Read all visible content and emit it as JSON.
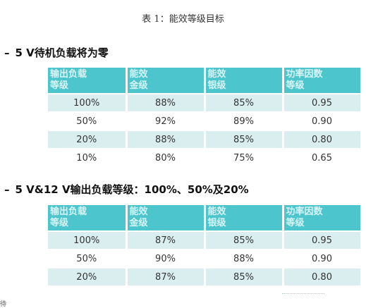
{
  "caption": "表 1：能效等级目标",
  "sections": [
    {
      "dash": "–",
      "title": "5 V待机负载将为零",
      "headers": [
        "输出负载\n等级",
        "能效\n金级",
        "能效\n银级",
        "功率因数\n等级"
      ],
      "rows": [
        [
          "100%",
          "88%",
          "85%",
          "0.95"
        ],
        [
          "50%",
          "92%",
          "89%",
          "0.90"
        ],
        [
          "20%",
          "88%",
          "85%",
          "0.80"
        ],
        [
          "10%",
          "80%",
          "75%",
          "0.65"
        ]
      ]
    },
    {
      "dash": "–",
      "title": "5 V&12 V输出负载等级：100%、50%及20%",
      "headers": [
        "输出负载\n等级",
        "能效\n金级",
        "能效\n银级",
        "功率因数\n等级"
      ],
      "rows": [
        [
          "100%",
          "87%",
          "85%",
          "0.95"
        ],
        [
          "50%",
          "90%",
          "88%",
          "0.90"
        ],
        [
          "20%",
          "87%",
          "85%",
          "0.80"
        ]
      ]
    }
  ],
  "footnote": "待",
  "colors": {
    "header_bg": "#4cc6cc",
    "header_text": "#d6f3f5",
    "row_alt_bg": "#daeeef"
  }
}
